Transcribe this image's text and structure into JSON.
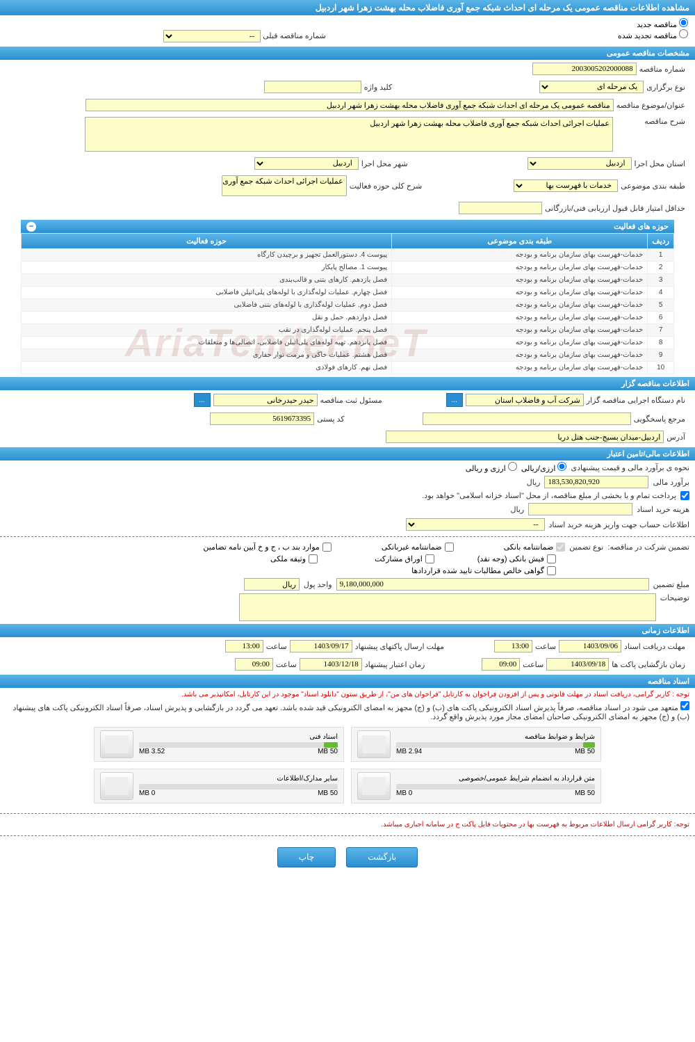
{
  "header": {
    "title": "مشاهده اطلاعات مناقصه عمومی یک مرحله ای احداث شبکه جمع آوری فاضلاب محله بهشت زهرا شهر اردبیل"
  },
  "radios": {
    "new": "مناقصه جدید",
    "renewed": "مناقصه تجدید شده",
    "prev_label": "شماره مناقصه قبلی",
    "prev_value": "--"
  },
  "sections": {
    "general": "مشخصات مناقصه عمومی",
    "activities": "حوزه های فعالیت",
    "owner": "اطلاعات مناقصه گزار",
    "financial": "اطلاعات مالی/تامین اعتبار",
    "timing": "اطلاعات زمانی",
    "docs": "اسناد مناقصه"
  },
  "general": {
    "number_label": "شماره مناقصه",
    "number": "2003005202000088",
    "type_label": "نوع برگزاری",
    "type": "یک مرحله ای",
    "keyword_label": "کلید واژه",
    "keyword": "",
    "title_label": "عنوان/موضوع مناقصه",
    "title": "مناقصه عمومی یک مرحله ای احداث شبکه جمع آوری فاضلاب محله بهشت زهرا شهر اردبیل",
    "desc_label": "شرح مناقصه",
    "desc": "عملیات اجرائی احداث شبکه جمع آوری فاضلاب محله بهشت زهرا شهر اردبیل",
    "province_label": "استان محل اجرا",
    "province": "اردبیل",
    "city_label": "شهر محل اجرا",
    "city": "اردبیل",
    "class_label": "طبقه بندی موضوعی",
    "class": "خدمات با فهرست بها",
    "scope_label": "شرح کلی حوزه فعالیت",
    "scope": "عملیات اجرائی احداث شبکه جمع آوری فاضلاب",
    "minscore_label": "حداقل امتیاز قابل قبول ارزیابی فنی/بازرگانی",
    "minscore": ""
  },
  "table": {
    "col_no": "ردیف",
    "col_class": "طبقه بندی موضوعی",
    "col_area": "حوزه فعالیت",
    "rows": [
      {
        "n": "1",
        "c": "خدمات-فهرست بهای سازمان برنامه و بودجه",
        "a": "پیوست 4. دستورالعمل تجهیز و برچیدن کارگاه"
      },
      {
        "n": "2",
        "c": "خدمات-فهرست بهای سازمان برنامه و بودجه",
        "a": "پیوست 1. مصالح پایکار"
      },
      {
        "n": "3",
        "c": "خدمات-فهرست بهای سازمان برنامه و بودجه",
        "a": "فصل یازدهم. کارهای بتنی و قالب‌بندی"
      },
      {
        "n": "4",
        "c": "خدمات-فهرست بهای سازمان برنامه و بودجه",
        "a": "فصل چهارم. عملیات لوله‌گذاری با لوله‌های پلی‌اتیلن فاضلابی"
      },
      {
        "n": "5",
        "c": "خدمات-فهرست بهای سازمان برنامه و بودجه",
        "a": "فصل دوم. عملیات لوله‌گذاری با لوله‌های بتنی فاضلابی"
      },
      {
        "n": "6",
        "c": "خدمات-فهرست بهای سازمان برنامه و بودجه",
        "a": "فصل دوازدهم. حمل و نقل"
      },
      {
        "n": "7",
        "c": "خدمات-فهرست بهای سازمان برنامه و بودجه",
        "a": "فصل پنجم. عملیات لوله‌گذاری در نقب"
      },
      {
        "n": "8",
        "c": "خدمات-فهرست بهای سازمان برنامه و بودجه",
        "a": "فصل پانزدهم. تهیه لوله‌های پلی‌اتیلن فاضلابی، اتصالی‌ها و متعلقات"
      },
      {
        "n": "9",
        "c": "خدمات-فهرست بهای سازمان برنامه و بودجه",
        "a": "فصل هشتم. عملیات خاکی و مرمت نوار حفاری"
      },
      {
        "n": "10",
        "c": "خدمات-فهرست بهای سازمان برنامه و بودجه",
        "a": "فصل نهم. کارهای فولادی"
      }
    ]
  },
  "owner": {
    "org_label": "نام دستگاه اجرایی مناقصه گزار",
    "org": "شرکت آب و فاضلاب استان",
    "reg_label": "مسئول ثبت مناقصه",
    "reg": "حیدر حیدرخانی",
    "ref_label": "مرجع پاسخگویی",
    "ref": "",
    "postcode_label": "کد پستی",
    "postcode": "5619673395",
    "address_label": "آدرس",
    "address": "اردبیل-میدان بسیج-جنب هتل دریا"
  },
  "financial": {
    "estimate_type_label": "نحوه ی برآورد مالی و قیمت پیشنهادی",
    "opt_rial": "ارزی/ریالی",
    "opt_arz": "ارزی و ریالی",
    "estimate_label": "برآورد مالی",
    "estimate": "183,530,820,920",
    "currency": "ریال",
    "payment_note": "پرداخت تمام و یا بخشی از مبلغ مناقصه، از محل \"اسناد خزانه اسلامی\" خواهد بود.",
    "doc_cost_label": "هزینه خرید اسناد",
    "doc_cost": "",
    "acct_label": "اطلاعات حساب جهت واریز هزینه خرید اسناد",
    "acct": "--",
    "guarantee_label": "تضمین شرکت در مناقصه:",
    "guarantee_type_label": "نوع تضمین",
    "cb_bank": "ضمانتنامه بانکی",
    "cb_nonbank": "ضمانتنامه غیربانکی",
    "cb_bond": "موارد بند ب ، ج و خ آیین نامه تضامین",
    "cb_fish": "فیش بانکی (وجه نقد)",
    "cb_shares": "اوراق مشارکت",
    "cb_prop": "وثیقه ملکی",
    "cb_cert": "گواهی خالص مطالبات تایید شده قراردادها",
    "amount_label": "مبلغ تضمین",
    "amount": "9,180,000,000",
    "unit_label": "واحد پول",
    "unit": "ریال",
    "notes_label": "توضیحات",
    "notes": ""
  },
  "timing": {
    "receive_label": "مهلت دریافت اسناد",
    "receive_date": "1403/09/06",
    "receive_time": "13:00",
    "open_label": "زمان بازگشایی پاکت ها",
    "open_date": "1403/09/18",
    "open_time": "09:00",
    "submit_label": "مهلت ارسال پاکتهای پیشنهاد",
    "submit_date": "1403/09/17",
    "submit_time": "13:00",
    "valid_label": "زمان اعتبار پیشنهاد",
    "valid_date": "1403/12/18",
    "valid_time": "09:00",
    "time_label": "ساعت"
  },
  "docs": {
    "warn1": "توجه : کاربر گرامی، دریافت اسناد در مهلت قانونی و پس از افزودن فراخوان به کارتابل \"فراخوان های من\"، از طریق ستون \"دانلود اسناد\" موجود در این کارتابل، امکانپذیر می باشد.",
    "warn2": "متعهد می شود در اسناد مناقصه، صرفاً پذیرش اسناد الکترونیکی پاکت های (ب) و (ج) مجهز به امضای الکترونیکی قید شده باشد. تعهد می گردد در بازگشایی و پذیرش اسناد، صرفاً اسناد الکترونیکی پاکت های پیشنهاد (ب) و (ج) مجهز به امضای الکترونیکی صاحبان امضای مجاز مورد پذیرش واقع گردد.",
    "warn3": "توجه: کاربر گرامی ارسال اطلاعات مربوط به فهرست بها در محتویات فایل پاکت ج در سامانه اجباری میباشد.",
    "files": [
      {
        "name": "شرایط و ضوابط مناقصه",
        "size": "2.94 MB",
        "max": "50 MB",
        "pct": 6,
        "color": "#6b3"
      },
      {
        "name": "اسناد فنی",
        "size": "3.52 MB",
        "max": "50 MB",
        "pct": 7,
        "color": "#6b3"
      },
      {
        "name": "متن قرارداد به انضمام شرایط عمومی/خصوصی",
        "size": "0 MB",
        "max": "50 MB",
        "pct": 0,
        "color": "#d33"
      },
      {
        "name": "سایر مدارک/اطلاعات",
        "size": "0 MB",
        "max": "50 MB",
        "pct": 0,
        "color": "#d33"
      }
    ]
  },
  "footer": {
    "back": "بازگشت",
    "print": "چاپ"
  },
  "watermark": "AriaTender.neT",
  "colors": {
    "accent": "#2a8fd0",
    "yellow": "#fdfdc7"
  }
}
